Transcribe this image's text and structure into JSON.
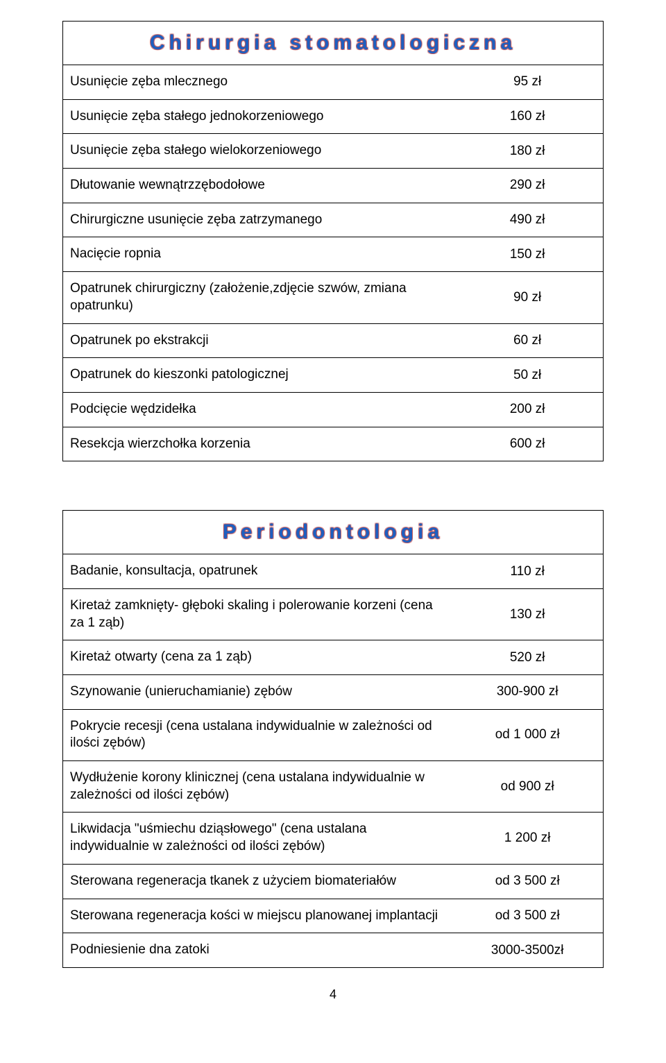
{
  "surgery": {
    "title": "Chirurgia stomatologiczna",
    "rows": [
      {
        "label": "Usunięcie zęba mlecznego",
        "price": "95 zł"
      },
      {
        "label": "Usunięcie zęba stałego jednokorzeniowego",
        "price": "160 zł"
      },
      {
        "label": "Usunięcie zęba  stałego wielokorzeniowego",
        "price": "180 zł"
      },
      {
        "label": "Dłutowanie wewnątrzzębodołowe",
        "price": "290 zł"
      },
      {
        "label": "Chirurgiczne usunięcie zęba zatrzymanego",
        "price": "490 zł"
      },
      {
        "label": "Nacięcie ropnia",
        "price": "150 zł"
      },
      {
        "label": "Opatrunek chirurgiczny (założenie,zdjęcie szwów, zmiana opatrunku)",
        "price": "90 zł"
      },
      {
        "label": "Opatrunek po ekstrakcji",
        "price": "60 zł"
      },
      {
        "label": "Opatrunek do kieszonki patologicznej",
        "price": "50 zł"
      },
      {
        "label": "Podcięcie wędzidełka",
        "price": "200 zł"
      },
      {
        "label": "Resekcja wierzchołka korzenia",
        "price": "600 zł"
      }
    ]
  },
  "perio": {
    "title": "Periodontologia",
    "rows": [
      {
        "label": "Badanie, konsultacja, opatrunek",
        "price": "110 zł"
      },
      {
        "label": "Kiretaż zamknięty- głęboki skaling i polerowanie korzeni (cena za 1 ząb)",
        "price": "130 zł"
      },
      {
        "label": "Kiretaż otwarty (cena za 1 ząb)",
        "price": "520 zł"
      },
      {
        "label": "Szynowanie (unieruchamianie) zębów",
        "price": "300-900 zł"
      },
      {
        "label": "Pokrycie recesji (cena ustalana indywidualnie w zależności od ilości zębów)",
        "price": "od 1 000 zł"
      },
      {
        "label": "Wydłużenie korony klinicznej (cena ustalana indywidualnie w zależności od ilości zębów)",
        "price": "od 900 zł"
      },
      {
        "label": "Likwidacja \"uśmiechu dziąsłowego\" (cena ustalana indywidualnie w zależności od ilości zębów)",
        "price": "1 200 zł"
      },
      {
        "label": "Sterowana regeneracja tkanek z użyciem biomateriałów",
        "price": "od 3 500 zł"
      },
      {
        "label": "Sterowana regeneracja kości w miejscu planowanej implantacji",
        "price": "od 3 500 zł"
      },
      {
        "label": "Podniesienie dna zatoki",
        "price": "3000-3500zł"
      }
    ]
  },
  "page_number": "4"
}
